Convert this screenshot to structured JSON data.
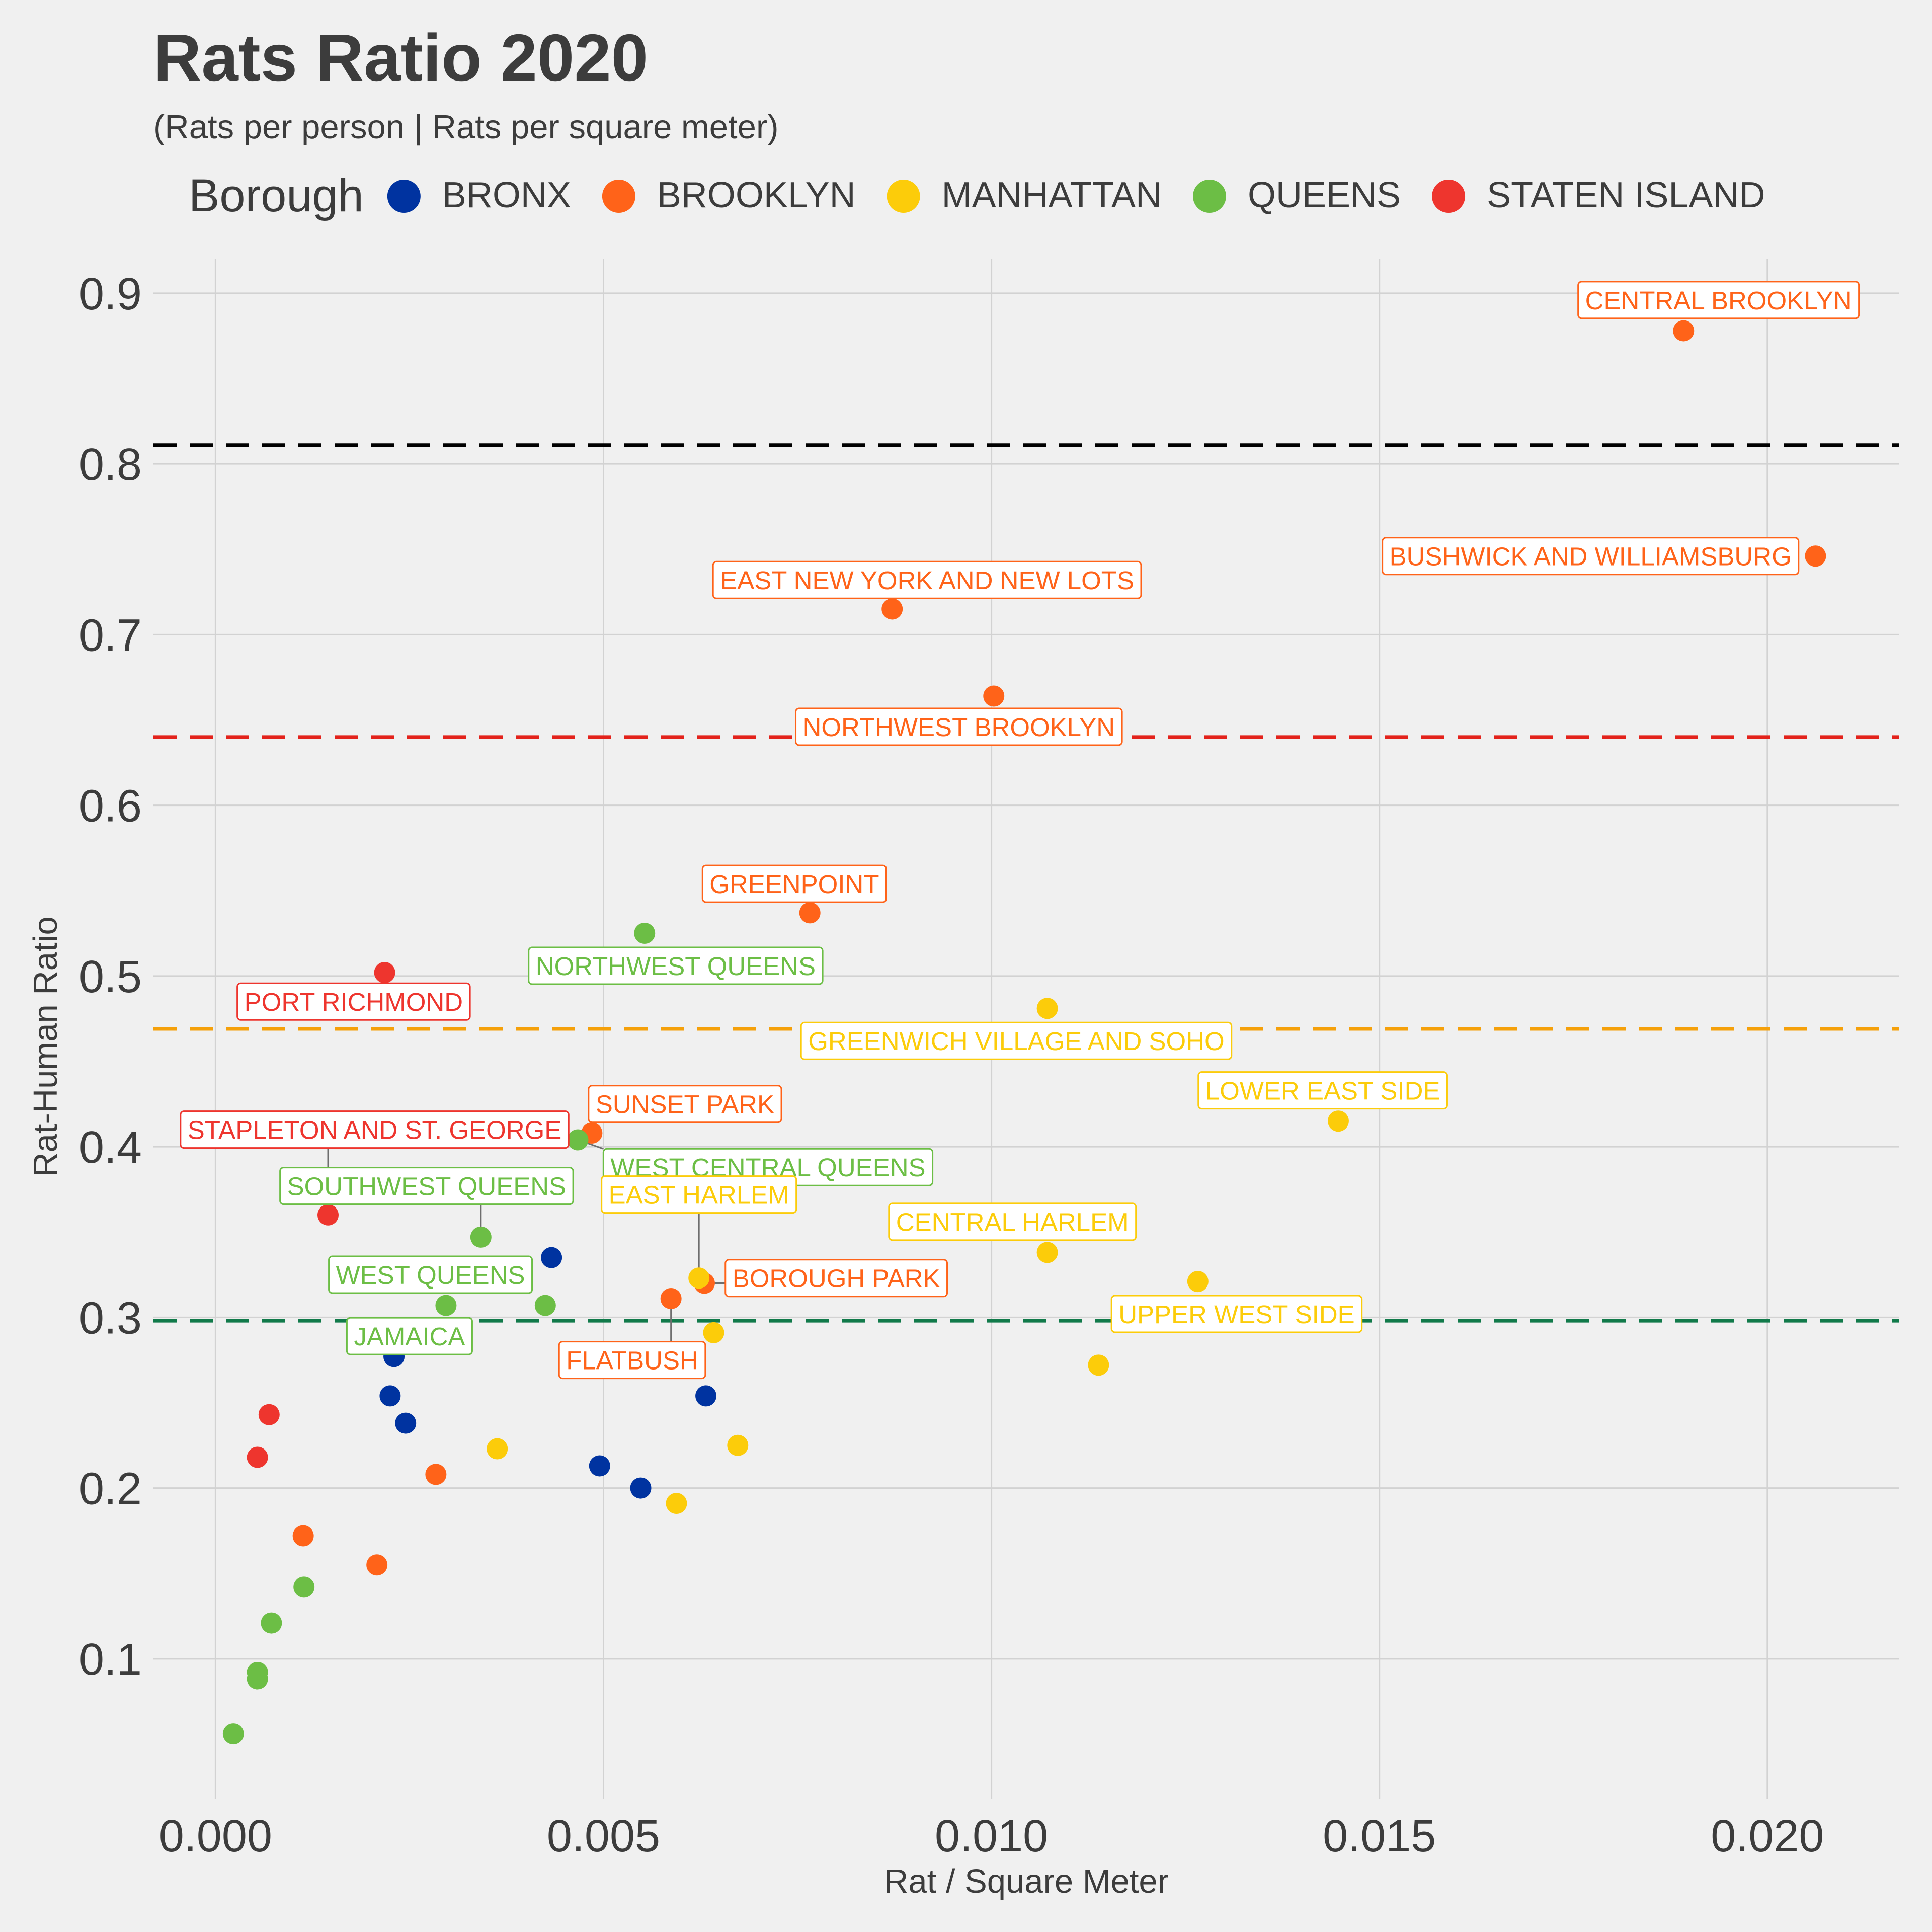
{
  "chart_data": {
    "type": "scatter",
    "title": "Rats Ratio 2020",
    "subtitle": "(Rats per person | Rats per square meter)",
    "xlabel": "Rat / Square Meter",
    "ylabel": "Rat-Human Ratio",
    "xlim": [
      -0.0008,
      0.0217
    ],
    "ylim": [
      0.018,
      0.92
    ],
    "x_ticks": [
      {
        "value": 0.0,
        "label": "0.000"
      },
      {
        "value": 0.005,
        "label": "0.005"
      },
      {
        "value": 0.01,
        "label": "0.010"
      },
      {
        "value": 0.015,
        "label": "0.015"
      },
      {
        "value": 0.02,
        "label": "0.020"
      }
    ],
    "y_ticks": [
      {
        "value": 0.1,
        "label": "0.1"
      },
      {
        "value": 0.2,
        "label": "0.2"
      },
      {
        "value": 0.3,
        "label": "0.3"
      },
      {
        "value": 0.4,
        "label": "0.4"
      },
      {
        "value": 0.5,
        "label": "0.5"
      },
      {
        "value": 0.6,
        "label": "0.6"
      },
      {
        "value": 0.7,
        "label": "0.7"
      },
      {
        "value": 0.8,
        "label": "0.8"
      },
      {
        "value": 0.9,
        "label": "0.9"
      }
    ],
    "grid": true,
    "legend": {
      "title": "Borough",
      "position": "top",
      "entries": [
        {
          "label": "BRONX",
          "color": "#0033a0"
        },
        {
          "label": "BROOKLYN",
          "color": "#ff6319"
        },
        {
          "label": "MANHATTAN",
          "color": "#fccc0a"
        },
        {
          "label": "QUEENS",
          "color": "#6cbe45"
        },
        {
          "label": "STATEN ISLAND",
          "color": "#ee352e"
        }
      ]
    },
    "reference_lines": [
      {
        "y": 0.811,
        "color": "#000000"
      },
      {
        "y": 0.64,
        "color": "#e3221b"
      },
      {
        "y": 0.469,
        "color": "#f5a00a"
      },
      {
        "y": 0.298,
        "color": "#117a4a"
      }
    ],
    "series": [
      {
        "name": "BRONX",
        "color": "#0033a0",
        "points": [
          {
            "x": 0.00433,
            "y": 0.335
          },
          {
            "x": 0.0023,
            "y": 0.277
          },
          {
            "x": 0.00225,
            "y": 0.254
          },
          {
            "x": 0.00245,
            "y": 0.238
          },
          {
            "x": 0.00632,
            "y": 0.254
          },
          {
            "x": 0.00495,
            "y": 0.213
          },
          {
            "x": 0.00548,
            "y": 0.2
          }
        ]
      },
      {
        "name": "BROOKLYN",
        "color": "#ff6319",
        "points": [
          {
            "x": 0.01892,
            "y": 0.878
          },
          {
            "x": 0.02062,
            "y": 0.746
          },
          {
            "x": 0.00872,
            "y": 0.715
          },
          {
            "x": 0.01003,
            "y": 0.664
          },
          {
            "x": 0.00766,
            "y": 0.537
          },
          {
            "x": 0.00485,
            "y": 0.408
          },
          {
            "x": 0.0063,
            "y": 0.32
          },
          {
            "x": 0.00587,
            "y": 0.311
          },
          {
            "x": 0.00284,
            "y": 0.208
          },
          {
            "x": 0.00113,
            "y": 0.172
          },
          {
            "x": 0.00208,
            "y": 0.155
          }
        ]
      },
      {
        "name": "MANHATTAN",
        "color": "#fccc0a",
        "points": [
          {
            "x": 0.01072,
            "y": 0.481
          },
          {
            "x": 0.01447,
            "y": 0.415
          },
          {
            "x": 0.01072,
            "y": 0.338
          },
          {
            "x": 0.01266,
            "y": 0.321
          },
          {
            "x": 0.00623,
            "y": 0.323
          },
          {
            "x": 0.00642,
            "y": 0.291
          },
          {
            "x": 0.01138,
            "y": 0.272
          },
          {
            "x": 0.00363,
            "y": 0.223
          },
          {
            "x": 0.00673,
            "y": 0.225
          },
          {
            "x": 0.00594,
            "y": 0.191
          }
        ]
      },
      {
        "name": "QUEENS",
        "color": "#6cbe45",
        "points": [
          {
            "x": 0.00553,
            "y": 0.525
          },
          {
            "x": 0.00467,
            "y": 0.404
          },
          {
            "x": 0.00342,
            "y": 0.347
          },
          {
            "x": 0.00297,
            "y": 0.307
          },
          {
            "x": 0.00425,
            "y": 0.307
          },
          {
            "x": 0.00114,
            "y": 0.142
          },
          {
            "x": 0.00072,
            "y": 0.121
          },
          {
            "x": 0.00054,
            "y": 0.092
          },
          {
            "x": 0.00054,
            "y": 0.088
          },
          {
            "x": 0.00023,
            "y": 0.056
          }
        ]
      },
      {
        "name": "STATEN ISLAND",
        "color": "#ee352e",
        "points": [
          {
            "x": 0.00218,
            "y": 0.502
          },
          {
            "x": 0.00145,
            "y": 0.36
          },
          {
            "x": 0.00069,
            "y": 0.243
          },
          {
            "x": 0.00054,
            "y": 0.218
          }
        ]
      }
    ],
    "annotations": [
      {
        "text": "CENTRAL BROOKLYN",
        "color": "#ff6319",
        "x": 0.01892,
        "y": 0.878,
        "dx": 0.00045,
        "dy": 0.018
      },
      {
        "text": "BUSHWICK AND WILLIAMSBURG",
        "color": "#ff6319",
        "x": 0.02062,
        "y": 0.746,
        "dx": -0.0029,
        "dy": 0.0
      },
      {
        "text": "EAST NEW YORK AND NEW LOTS",
        "color": "#ff6319",
        "x": 0.00872,
        "y": 0.715,
        "dx": 0.00045,
        "dy": 0.017
      },
      {
        "text": "NORTHWEST BROOKLYN",
        "color": "#ff6319",
        "x": 0.01003,
        "y": 0.664,
        "dx": -0.00045,
        "dy": -0.018
      },
      {
        "text": "GREENPOINT",
        "color": "#ff6319",
        "x": 0.00766,
        "y": 0.537,
        "dx": -0.0002,
        "dy": 0.017
      },
      {
        "text": "NORTHWEST QUEENS",
        "color": "#6cbe45",
        "x": 0.00553,
        "y": 0.525,
        "dx": 0.0004,
        "dy": -0.019
      },
      {
        "text": "PORT RICHMOND",
        "color": "#ee352e",
        "x": 0.00218,
        "y": 0.502,
        "dx": -0.0004,
        "dy": -0.017
      },
      {
        "text": "GREENWICH VILLAGE AND SOHO",
        "color": "#fccc0a",
        "x": 0.01072,
        "y": 0.481,
        "dx": -0.0004,
        "dy": -0.019
      },
      {
        "text": "LOWER EAST SIDE",
        "color": "#fccc0a",
        "x": 0.01447,
        "y": 0.415,
        "dx": -0.0002,
        "dy": 0.018
      },
      {
        "text": "SUNSET PARK",
        "color": "#ff6319",
        "x": 0.00485,
        "y": 0.408,
        "dx": 0.0012,
        "dy": 0.017
      },
      {
        "text": "STAPLETON AND ST. GEORGE",
        "color": "#ee352e",
        "x": 0.00145,
        "y": 0.36,
        "dx": 0.0006,
        "dy": 0.05
      },
      {
        "text": "WEST CENTRAL QUEENS",
        "color": "#6cbe45",
        "x": 0.00467,
        "y": 0.404,
        "dx": 0.00245,
        "dy": -0.016
      },
      {
        "text": "SOUTHWEST QUEENS",
        "color": "#6cbe45",
        "x": 0.00342,
        "y": 0.347,
        "dx": -0.0007,
        "dy": 0.03
      },
      {
        "text": "EAST HARLEM",
        "color": "#fccc0a",
        "x": 0.00623,
        "y": 0.323,
        "dx": 0.0,
        "dy": 0.049
      },
      {
        "text": "CENTRAL HARLEM",
        "color": "#fccc0a",
        "x": 0.01072,
        "y": 0.338,
        "dx": -0.00045,
        "dy": 0.018
      },
      {
        "text": "BOROUGH PARK",
        "color": "#ff6319",
        "x": 0.0063,
        "y": 0.32,
        "dx": 0.0017,
        "dy": 0.003
      },
      {
        "text": "WEST QUEENS",
        "color": "#6cbe45",
        "x": 0.00297,
        "y": 0.307,
        "dx": -0.0002,
        "dy": 0.018
      },
      {
        "text": "UPPER WEST SIDE",
        "color": "#fccc0a",
        "x": 0.01266,
        "y": 0.321,
        "dx": 0.0005,
        "dy": -0.019
      },
      {
        "text": "FLATBUSH",
        "color": "#ff6319",
        "x": 0.00587,
        "y": 0.311,
        "dx": -0.0005,
        "dy": -0.036
      },
      {
        "text": "JAMAICA",
        "color": "#6cbe45",
        "x": 0.0023,
        "y": 0.277,
        "dx": 0.0002,
        "dy": 0.012
      }
    ]
  }
}
